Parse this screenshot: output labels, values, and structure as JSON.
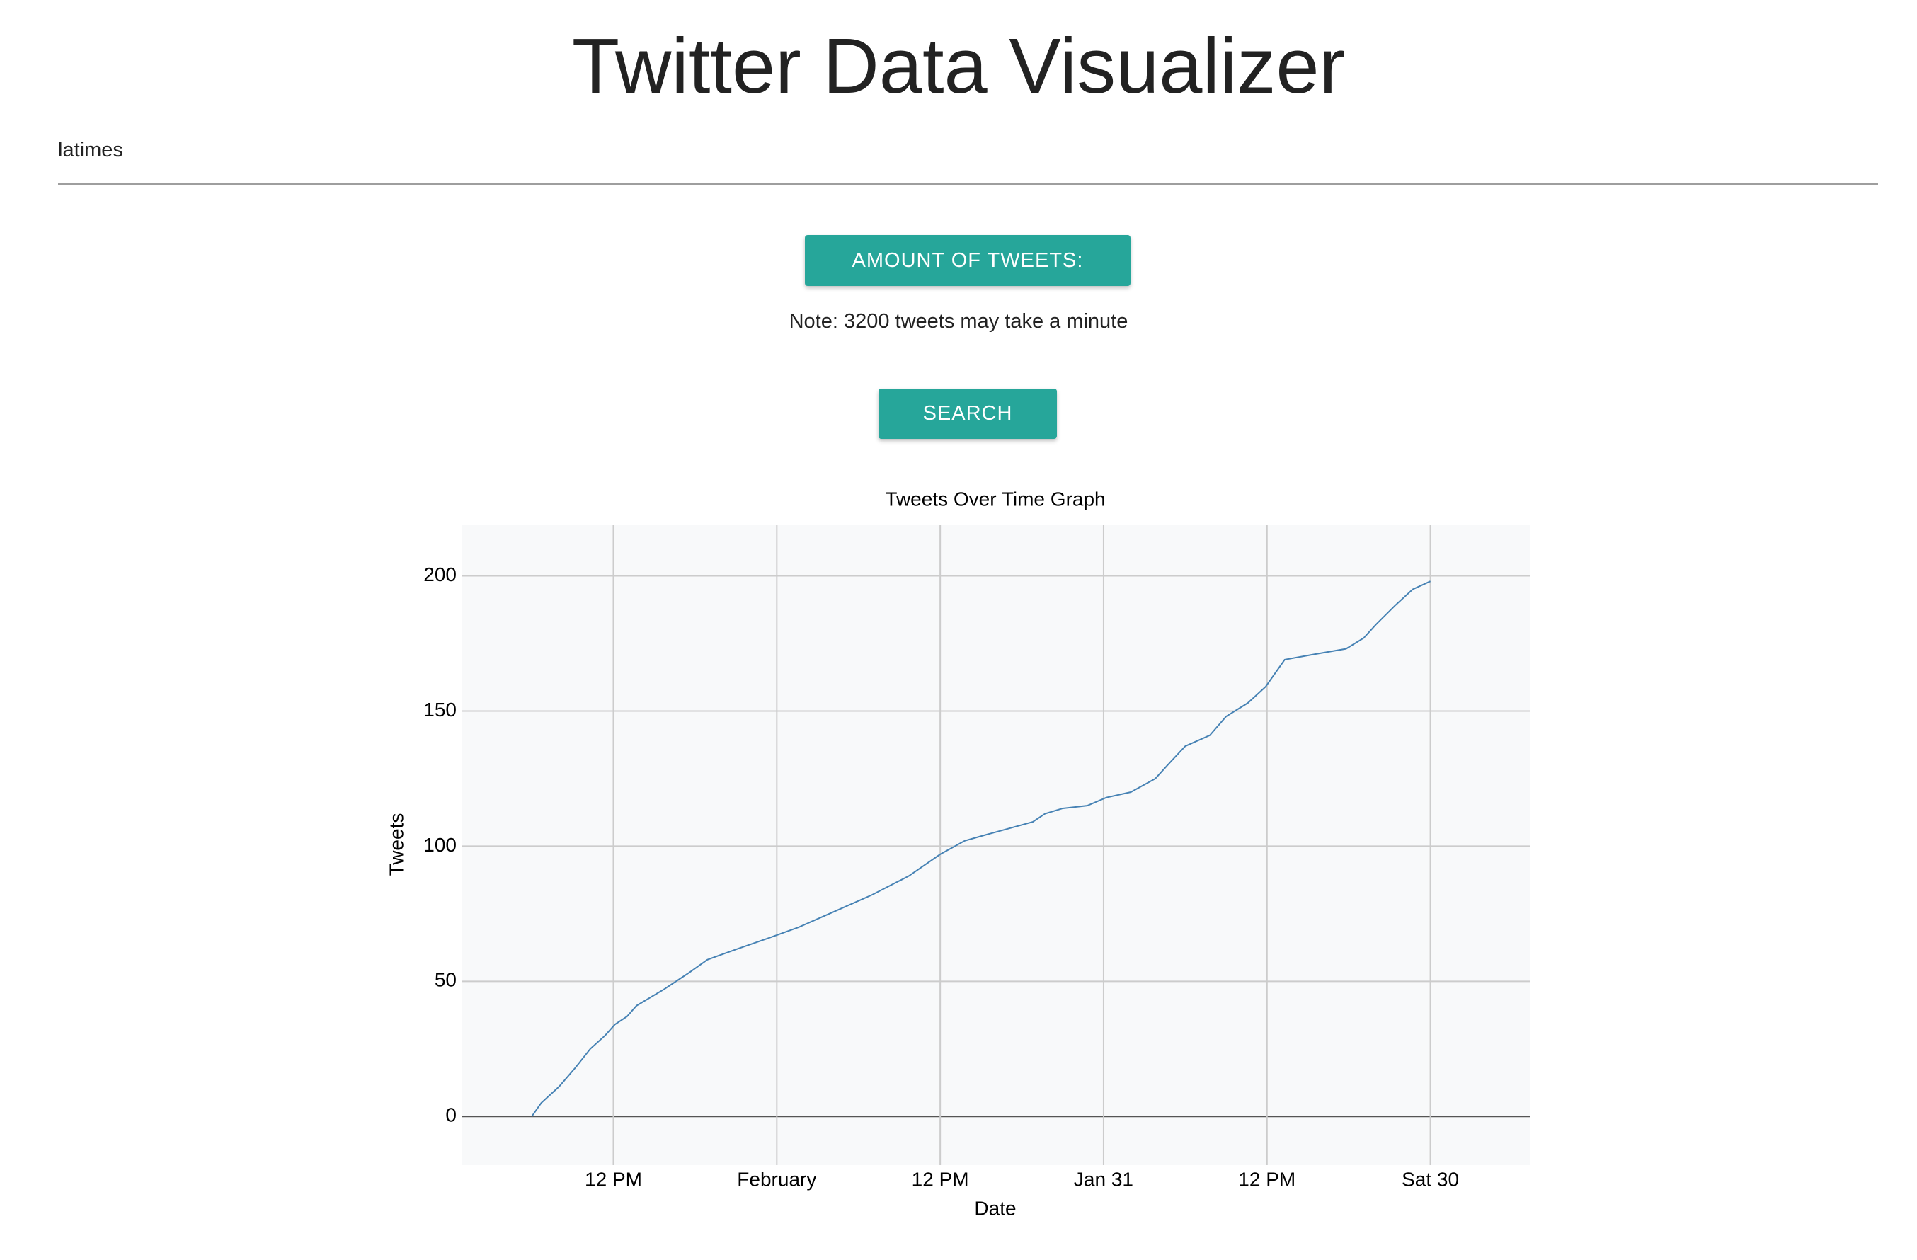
{
  "header": {
    "title": "Twitter Data Visualizer"
  },
  "search": {
    "handle": "latimes"
  },
  "buttons": {
    "amount": "AMOUNT OF TWEETS:",
    "search": "SEARCH"
  },
  "note": "Note: 3200 tweets may take a minute",
  "chart_data": {
    "type": "line",
    "title": "Tweets Over Time Graph",
    "x_label": "Date",
    "y_label": "Tweets",
    "x": [
      66.0,
      65.3,
      64.0,
      62.8,
      61.7,
      60.6,
      59.9,
      59.0,
      58.3,
      56.3,
      54.5,
      53.1,
      50.9,
      48.6,
      46.4,
      43.7,
      41.0,
      38.3,
      36.0,
      34.2,
      32.8,
      29.2,
      28.3,
      27.0,
      25.2,
      23.8,
      22.0,
      20.2,
      19.3,
      18.0,
      16.2,
      15.0,
      13.4,
      12.1,
      10.7,
      8.5,
      6.2,
      4.9,
      4.0,
      2.6,
      1.3,
      0
    ],
    "series": [
      {
        "name": "Tweets",
        "color": "#4682b4",
        "values": [
          0,
          5,
          11,
          18,
          25,
          30,
          34,
          37,
          41,
          47,
          53,
          58,
          62,
          66,
          70,
          76,
          82,
          89,
          97,
          102,
          104,
          109,
          112,
          114,
          115,
          118,
          120,
          125,
          130,
          137,
          141,
          148,
          153,
          159,
          169,
          171,
          173,
          177,
          182,
          189,
          195,
          198
        ]
      }
    ],
    "xlim": [
      71.1,
      -7.3
    ],
    "xticks": [
      {
        "value": 60,
        "label": "12 PM"
      },
      {
        "value": 48,
        "label": "February"
      },
      {
        "value": 36,
        "label": "12 PM"
      },
      {
        "value": 24,
        "label": "Jan 31"
      },
      {
        "value": 12,
        "label": "12 PM"
      },
      {
        "value": 0,
        "label": "Sat 30"
      }
    ],
    "ylim": [
      -18,
      219
    ],
    "yticks": [
      0,
      50,
      100,
      150,
      200
    ],
    "grid": true
  }
}
